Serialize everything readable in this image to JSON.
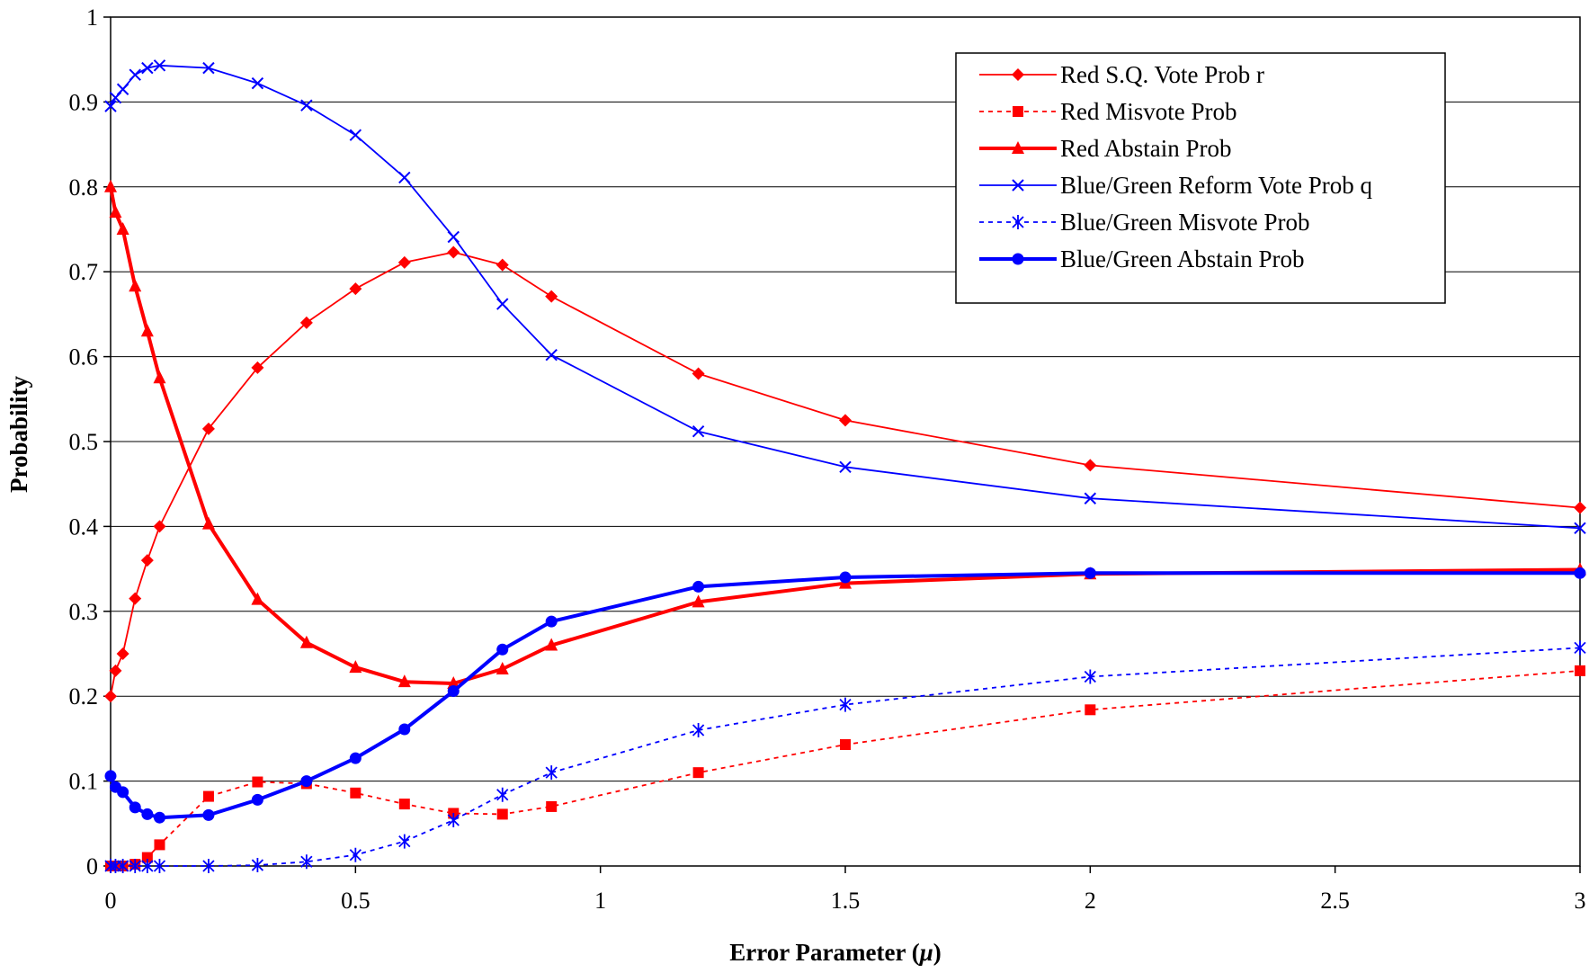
{
  "chart_data": {
    "type": "line",
    "xlabel": "Error Parameter (",
    "xlabel_symbol": "μ",
    "xlabel_close": ")",
    "ylabel": "Probability",
    "xlim": [
      0,
      3
    ],
    "ylim": [
      0,
      1
    ],
    "grid": "horizontal",
    "legend_position": "top-right",
    "x_ticks": [
      0,
      0.5,
      1,
      1.5,
      2,
      2.5,
      3
    ],
    "x_tick_labels": [
      "0",
      "0.5",
      "1",
      "1.5",
      "2",
      "2.5",
      "3"
    ],
    "y_ticks": [
      0,
      0.1,
      0.2,
      0.3,
      0.4,
      0.5,
      0.6,
      0.7,
      0.8,
      0.9,
      1
    ],
    "y_tick_labels": [
      "0",
      "0.1",
      "0.2",
      "0.3",
      "0.4",
      "0.5",
      "0.6",
      "0.7",
      "0.8",
      "0.9",
      "1"
    ],
    "x": [
      0,
      0.01,
      0.025,
      0.05,
      0.075,
      0.1,
      0.2,
      0.3,
      0.4,
      0.5,
      0.6,
      0.7,
      0.8,
      0.9,
      1.2,
      1.5,
      2,
      3
    ],
    "series": [
      {
        "name": "Red S.Q. Vote Prob r",
        "color": "#ff0000",
        "marker": "diamond",
        "line": "solid",
        "thick": false,
        "values": [
          0.2,
          0.23,
          0.25,
          0.315,
          0.36,
          0.4,
          0.515,
          0.587,
          0.64,
          0.68,
          0.711,
          0.723,
          0.708,
          0.671,
          0.58,
          0.525,
          0.472,
          0.422
        ]
      },
      {
        "name": "Red Misvote Prob",
        "color": "#ff0000",
        "marker": "square",
        "line": "dotted",
        "thick": false,
        "values": [
          0,
          0,
          0,
          0.002,
          0.01,
          0.025,
          0.082,
          0.099,
          0.097,
          0.086,
          0.073,
          0.062,
          0.061,
          0.07,
          0.11,
          0.143,
          0.184,
          0.23
        ]
      },
      {
        "name": "Red Abstain Prob",
        "color": "#ff0000",
        "marker": "triangle",
        "line": "solid",
        "thick": true,
        "values": [
          0.8,
          0.77,
          0.75,
          0.683,
          0.63,
          0.575,
          0.403,
          0.314,
          0.263,
          0.234,
          0.217,
          0.215,
          0.232,
          0.26,
          0.311,
          0.333,
          0.344,
          0.349
        ]
      },
      {
        "name": "Blue/Green Reform Vote Prob q",
        "color": "#0000ff",
        "marker": "x",
        "line": "solid",
        "thick": false,
        "values": [
          0.895,
          0.905,
          0.915,
          0.932,
          0.94,
          0.943,
          0.94,
          0.922,
          0.896,
          0.861,
          0.811,
          0.741,
          0.662,
          0.602,
          0.512,
          0.47,
          0.433,
          0.398
        ]
      },
      {
        "name": "Blue/Green Misvote Prob",
        "color": "#0000ff",
        "marker": "asterisk",
        "line": "dotted",
        "thick": false,
        "values": [
          0,
          0,
          0,
          0,
          0,
          0,
          0,
          0.001,
          0.005,
          0.013,
          0.029,
          0.054,
          0.084,
          0.11,
          0.16,
          0.19,
          0.223,
          0.257
        ]
      },
      {
        "name": "Blue/Green Abstain Prob",
        "color": "#0000ff",
        "marker": "circle",
        "line": "solid",
        "thick": true,
        "values": [
          0.106,
          0.093,
          0.087,
          0.069,
          0.061,
          0.057,
          0.06,
          0.078,
          0.1,
          0.127,
          0.161,
          0.206,
          0.255,
          0.288,
          0.329,
          0.34,
          0.345,
          0.345
        ]
      }
    ]
  }
}
